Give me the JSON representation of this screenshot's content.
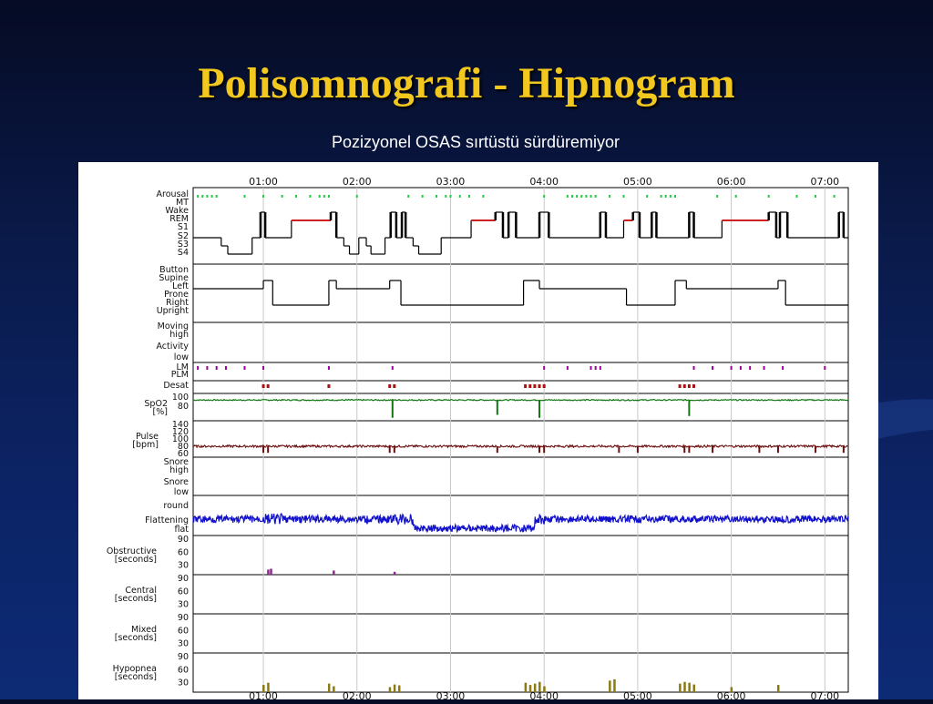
{
  "slide": {
    "title": "Polisomnografi - Hipnogram",
    "subtitle": "Pozizyonel OSAS sırtüstü sürdüremiyor"
  },
  "chart_data": {
    "type": "line",
    "x_unit": "hours",
    "x_range": [
      0.25,
      7.25
    ],
    "time_ticks": [
      "01:00",
      "02:00",
      "03:00",
      "04:00",
      "05:00",
      "06:00",
      "07:00"
    ],
    "time_tick_values": [
      1,
      2,
      3,
      4,
      5,
      6,
      7
    ],
    "grid": true,
    "colors": {
      "arousal": "#22cc44",
      "rem": "#cc2222",
      "desat": "#aa1111",
      "lm": "#990099",
      "spo2": "#117711",
      "pulse": "#6b0e0e",
      "flattening": "#1111cc",
      "obstructive": "#8a2a8a",
      "hypopnea": "#8a7a10",
      "trace": "#000000"
    },
    "panels": [
      {
        "id": "hypnogram",
        "labels": [
          "Arousal",
          "MT",
          "Wake",
          "REM",
          "S1",
          "S2",
          "S3",
          "S4"
        ],
        "arousal_events": [
          0.3,
          0.35,
          0.4,
          0.45,
          0.5,
          0.8,
          1.0,
          1.2,
          1.35,
          1.5,
          1.6,
          1.65,
          1.7,
          2.0,
          2.55,
          2.7,
          2.85,
          2.95,
          3.0,
          3.1,
          3.2,
          3.35,
          4.0,
          4.25,
          4.3,
          4.35,
          4.4,
          4.45,
          4.5,
          4.55,
          4.7,
          4.85,
          5.1,
          5.25,
          5.3,
          5.35,
          5.4,
          5.85,
          6.05,
          6.4,
          6.7,
          6.9,
          7.1
        ],
        "stages": [
          {
            "t": 0.25,
            "stage": "S2"
          },
          {
            "t": 0.55,
            "stage": "S3"
          },
          {
            "t": 0.62,
            "stage": "S4"
          },
          {
            "t": 0.88,
            "stage": "S2"
          },
          {
            "t": 0.97,
            "stage": "Wake"
          },
          {
            "t": 1.02,
            "stage": "S2"
          },
          {
            "t": 1.3,
            "stage": "REM"
          },
          {
            "t": 1.72,
            "stage": "Wake"
          },
          {
            "t": 1.78,
            "stage": "S2"
          },
          {
            "t": 1.86,
            "stage": "S3"
          },
          {
            "t": 1.92,
            "stage": "S4"
          },
          {
            "t": 2.02,
            "stage": "S2"
          },
          {
            "t": 2.1,
            "stage": "S3"
          },
          {
            "t": 2.15,
            "stage": "S4"
          },
          {
            "t": 2.3,
            "stage": "S2"
          },
          {
            "t": 2.36,
            "stage": "Wake"
          },
          {
            "t": 2.42,
            "stage": "S2"
          },
          {
            "t": 2.48,
            "stage": "Wake"
          },
          {
            "t": 2.52,
            "stage": "S2"
          },
          {
            "t": 2.6,
            "stage": "S3"
          },
          {
            "t": 2.66,
            "stage": "S4"
          },
          {
            "t": 2.9,
            "stage": "S2"
          },
          {
            "t": 3.22,
            "stage": "REM"
          },
          {
            "t": 3.48,
            "stage": "Wake"
          },
          {
            "t": 3.56,
            "stage": "S2"
          },
          {
            "t": 3.62,
            "stage": "Wake"
          },
          {
            "t": 3.7,
            "stage": "S2"
          },
          {
            "t": 3.95,
            "stage": "Wake"
          },
          {
            "t": 4.05,
            "stage": "S2"
          },
          {
            "t": 4.6,
            "stage": "Wake"
          },
          {
            "t": 4.66,
            "stage": "S2"
          },
          {
            "t": 4.85,
            "stage": "REM"
          },
          {
            "t": 4.95,
            "stage": "Wake"
          },
          {
            "t": 5.02,
            "stage": "S2"
          },
          {
            "t": 5.15,
            "stage": "Wake"
          },
          {
            "t": 5.2,
            "stage": "S2"
          },
          {
            "t": 5.55,
            "stage": "Wake"
          },
          {
            "t": 5.6,
            "stage": "S2"
          },
          {
            "t": 5.9,
            "stage": "REM"
          },
          {
            "t": 6.4,
            "stage": "Wake"
          },
          {
            "t": 6.48,
            "stage": "S2"
          },
          {
            "t": 6.52,
            "stage": "Wake"
          },
          {
            "t": 6.6,
            "stage": "S2"
          },
          {
            "t": 7.15,
            "stage": "Wake"
          },
          {
            "t": 7.2,
            "stage": "S2"
          }
        ]
      },
      {
        "id": "position",
        "labels": [
          "Button",
          "Supine",
          "Left",
          "Prone",
          "Right",
          "Upright"
        ],
        "positions": [
          {
            "t": 0.25,
            "pos": "Left"
          },
          {
            "t": 1.0,
            "pos": "Supine"
          },
          {
            "t": 1.1,
            "pos": "Right"
          },
          {
            "t": 1.7,
            "pos": "Supine"
          },
          {
            "t": 1.78,
            "pos": "Left"
          },
          {
            "t": 2.35,
            "pos": "Supine"
          },
          {
            "t": 2.47,
            "pos": "Right"
          },
          {
            "t": 3.78,
            "pos": "Supine"
          },
          {
            "t": 3.95,
            "pos": "Left"
          },
          {
            "t": 4.88,
            "pos": "Right"
          },
          {
            "t": 5.4,
            "pos": "Supine"
          },
          {
            "t": 5.52,
            "pos": "Left"
          },
          {
            "t": 6.5,
            "pos": "Supine"
          },
          {
            "t": 6.58,
            "pos": "Right"
          }
        ]
      },
      {
        "id": "activity",
        "labels": [
          "Moving",
          "high",
          "Activity",
          "low"
        ]
      },
      {
        "id": "lm",
        "labels": [
          "LM",
          "PLM"
        ],
        "events": [
          0.3,
          0.4,
          0.5,
          0.6,
          0.8,
          1.0,
          1.7,
          2.38,
          4.0,
          4.25,
          4.5,
          4.55,
          4.6,
          5.6,
          5.8,
          6.0,
          6.1,
          6.2,
          6.35,
          6.55,
          7.0
        ]
      },
      {
        "id": "desat",
        "labels": [
          "Desat"
        ],
        "events": [
          1.0,
          1.05,
          1.7,
          2.35,
          2.4,
          3.8,
          3.85,
          3.9,
          3.95,
          4.0,
          5.45,
          5.5,
          5.55,
          5.6
        ]
      },
      {
        "id": "spo2",
        "labels": [
          "100",
          "80",
          "SpO2",
          "[%]"
        ],
        "y_range": [
          60,
          100
        ],
        "baseline": 95,
        "dips": [
          {
            "t": 2.38,
            "min": 65
          },
          {
            "t": 3.5,
            "min": 70
          },
          {
            "t": 3.95,
            "min": 65
          },
          {
            "t": 5.55,
            "min": 68
          }
        ]
      },
      {
        "id": "pulse",
        "labels": [
          "140",
          "120",
          "100",
          "80",
          "60",
          "Pulse",
          "[bpm]"
        ],
        "y_range": [
          60,
          140
        ],
        "baseline": 80,
        "spikes": [
          1.0,
          1.05,
          2.35,
          2.4,
          3.5,
          3.95,
          4.0,
          4.8,
          5.0,
          5.5,
          5.55,
          5.8,
          6.3,
          6.5,
          6.9,
          7.2
        ]
      },
      {
        "id": "snore",
        "labels": [
          "Snore",
          "high",
          "Snore",
          "low"
        ]
      },
      {
        "id": "flattening",
        "labels": [
          "round",
          "Flattening",
          "flat"
        ]
      },
      {
        "id": "obstructive",
        "labels": [
          "90",
          "60",
          "30",
          "Obstructive",
          "[seconds]"
        ],
        "y_range": [
          0,
          90
        ],
        "events": [
          {
            "t": 1.05,
            "v": 20
          },
          {
            "t": 1.08,
            "v": 22
          },
          {
            "t": 1.75,
            "v": 18
          },
          {
            "t": 2.4,
            "v": 15
          }
        ]
      },
      {
        "id": "central",
        "labels": [
          "90",
          "60",
          "30",
          "Central",
          "[seconds]"
        ],
        "y_range": [
          0,
          90
        ],
        "events": []
      },
      {
        "id": "mixed",
        "labels": [
          "90",
          "60",
          "30",
          "Mixed",
          "[seconds]"
        ],
        "y_range": [
          0,
          90
        ],
        "events": []
      },
      {
        "id": "hypopnea",
        "labels": [
          "90",
          "60",
          "30",
          "Hypopnea",
          "[seconds]"
        ],
        "y_range": [
          0,
          90
        ],
        "events": [
          {
            "t": 1.0,
            "v": 25
          },
          {
            "t": 1.05,
            "v": 30
          },
          {
            "t": 1.7,
            "v": 28
          },
          {
            "t": 1.75,
            "v": 22
          },
          {
            "t": 2.35,
            "v": 20
          },
          {
            "t": 2.4,
            "v": 26
          },
          {
            "t": 2.45,
            "v": 24
          },
          {
            "t": 3.8,
            "v": 30
          },
          {
            "t": 3.85,
            "v": 25
          },
          {
            "t": 3.9,
            "v": 28
          },
          {
            "t": 3.95,
            "v": 32
          },
          {
            "t": 4.0,
            "v": 22
          },
          {
            "t": 4.7,
            "v": 35
          },
          {
            "t": 4.75,
            "v": 38
          },
          {
            "t": 5.45,
            "v": 28
          },
          {
            "t": 5.5,
            "v": 32
          },
          {
            "t": 5.55,
            "v": 30
          },
          {
            "t": 5.6,
            "v": 26
          },
          {
            "t": 6.0,
            "v": 20
          },
          {
            "t": 6.5,
            "v": 25
          }
        ]
      }
    ]
  }
}
